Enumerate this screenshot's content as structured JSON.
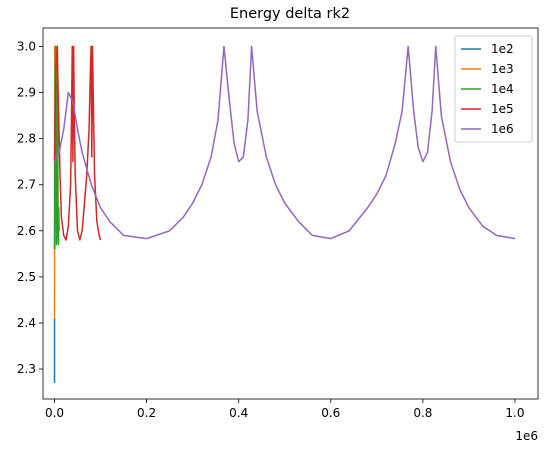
{
  "chart_data": {
    "type": "line",
    "title": "Energy delta rk2",
    "xlabel": "",
    "ylabel": "",
    "x_offset_label": "1e6",
    "xlim": [
      -25000,
      1050000
    ],
    "ylim": [
      2.235,
      3.04
    ],
    "grid": false,
    "legend_position": "top-right",
    "x_ticks": [
      {
        "value": 0,
        "label": "0.0"
      },
      {
        "value": 200000,
        "label": "0.2"
      },
      {
        "value": 400000,
        "label": "0.4"
      },
      {
        "value": 600000,
        "label": "0.6"
      },
      {
        "value": 800000,
        "label": "0.8"
      },
      {
        "value": 1000000,
        "label": "1.0"
      }
    ],
    "y_ticks": [
      {
        "value": 2.3,
        "label": "2.3"
      },
      {
        "value": 2.4,
        "label": "2.4"
      },
      {
        "value": 2.5,
        "label": "2.5"
      },
      {
        "value": 2.6,
        "label": "2.6"
      },
      {
        "value": 2.7,
        "label": "2.7"
      },
      {
        "value": 2.8,
        "label": "2.8"
      },
      {
        "value": 2.9,
        "label": "2.9"
      },
      {
        "value": 3.0,
        "label": "3.0"
      }
    ],
    "series": [
      {
        "name": "1e2",
        "color": "#1f77b4",
        "x": [
          0,
          10,
          20,
          40,
          60,
          80,
          100
        ],
        "y": [
          2.27,
          2.3,
          2.34,
          2.37,
          2.39,
          2.4,
          2.41
        ]
      },
      {
        "name": "1e3",
        "color": "#ff7f0e",
        "x": [
          0,
          100,
          200,
          300,
          400,
          500,
          600,
          700,
          800,
          900,
          1000
        ],
        "y": [
          2.41,
          2.55,
          2.72,
          2.86,
          2.97,
          3.0,
          2.92,
          2.78,
          2.65,
          2.58,
          2.56
        ]
      },
      {
        "name": "1e4",
        "color": "#2ca02c",
        "x": [
          0,
          800,
          1600,
          2400,
          3000,
          3600,
          4200,
          5000,
          5600,
          6200,
          6800,
          7400,
          8000,
          8600,
          9200,
          10000
        ],
        "y": [
          2.56,
          2.75,
          2.95,
          3.0,
          2.85,
          2.65,
          2.57,
          2.58,
          2.75,
          3.0,
          2.9,
          2.7,
          2.6,
          2.57,
          2.65,
          2.6
        ]
      },
      {
        "name": "1e5",
        "color": "#d62728",
        "x": [
          0,
          3000,
          6000,
          9000,
          12000,
          15000,
          20000,
          25000,
          30000,
          35000,
          37000,
          38500,
          40000,
          41500,
          43000,
          45000,
          50000,
          55000,
          60000,
          65000,
          70000,
          75000,
          78000,
          79500,
          81000,
          82500,
          84000,
          87000,
          92000,
          97000,
          100000
        ],
        "y": [
          2.75,
          2.95,
          3.0,
          2.85,
          2.72,
          2.63,
          2.59,
          2.58,
          2.61,
          2.7,
          2.85,
          3.0,
          2.75,
          3.0,
          2.85,
          2.72,
          2.6,
          2.58,
          2.6,
          2.66,
          2.72,
          2.82,
          2.95,
          3.0,
          2.76,
          3.0,
          2.9,
          2.72,
          2.62,
          2.59,
          2.58
        ]
      },
      {
        "name": "1e6",
        "color": "#9467bd",
        "x": [
          0,
          10000,
          20000,
          30000,
          40000,
          50000,
          60000,
          80000,
          100000,
          120000,
          150000,
          200000,
          250000,
          280000,
          300000,
          320000,
          340000,
          355000,
          368000,
          380000,
          390000,
          400000,
          410000,
          420000,
          428000,
          440000,
          460000,
          480000,
          500000,
          530000,
          560000,
          600000,
          640000,
          680000,
          700000,
          720000,
          740000,
          755000,
          768000,
          780000,
          790000,
          800000,
          810000,
          820000,
          828000,
          840000,
          860000,
          880000,
          900000,
          930000,
          960000,
          1000000
        ],
        "y": [
          2.75,
          2.77,
          2.82,
          2.9,
          2.88,
          2.82,
          2.77,
          2.7,
          2.65,
          2.62,
          2.59,
          2.583,
          2.6,
          2.63,
          2.66,
          2.7,
          2.76,
          2.84,
          3.0,
          2.88,
          2.79,
          2.75,
          2.76,
          2.84,
          3.0,
          2.86,
          2.76,
          2.7,
          2.66,
          2.62,
          2.59,
          2.583,
          2.6,
          2.65,
          2.68,
          2.72,
          2.79,
          2.86,
          3.0,
          2.86,
          2.78,
          2.75,
          2.77,
          2.86,
          3.0,
          2.85,
          2.75,
          2.69,
          2.65,
          2.61,
          2.59,
          2.583
        ]
      }
    ]
  }
}
